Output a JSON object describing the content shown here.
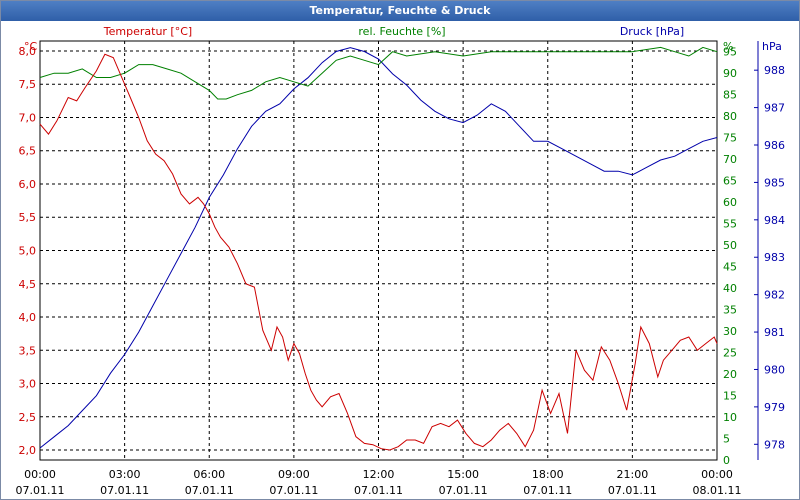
{
  "window": {
    "title": "Temperatur, Feuchte & Druck"
  },
  "chart_data": {
    "type": "line",
    "title": "Temperatur, Feuchte & Druck",
    "grid": true,
    "x_ticks": [
      {
        "time": "00:00",
        "date": "07.01.11"
      },
      {
        "time": "03:00",
        "date": "07.01.11"
      },
      {
        "time": "06:00",
        "date": "07.01.11"
      },
      {
        "time": "09:00",
        "date": "07.01.11"
      },
      {
        "time": "12:00",
        "date": "07.01.11"
      },
      {
        "time": "15:00",
        "date": "07.01.11"
      },
      {
        "time": "18:00",
        "date": "07.01.11"
      },
      {
        "time": "21:00",
        "date": "07.01.11"
      },
      {
        "time": "00:00",
        "date": "08.01.11"
      }
    ],
    "x_range_hours": [
      0,
      24
    ],
    "axes": {
      "temperature": {
        "label": "Temperatur [°C]",
        "unit": "°C",
        "color": "#cc0000",
        "min": 1.85,
        "max": 8.15,
        "ticks": [
          "8,0",
          "7,5",
          "7,0",
          "6,5",
          "6,0",
          "5,5",
          "5,0",
          "4,5",
          "4,0",
          "3,5",
          "3,0",
          "2,5",
          "2,0"
        ],
        "tick_values": [
          8.0,
          7.5,
          7.0,
          6.5,
          6.0,
          5.5,
          5.0,
          4.5,
          4.0,
          3.5,
          3.0,
          2.5,
          2.0
        ]
      },
      "humidity": {
        "label": "rel. Feuchte [%]",
        "unit": "%",
        "color": "#008000",
        "min": 0,
        "max": 97.5,
        "ticks": [
          "95",
          "90",
          "85",
          "80",
          "75",
          "70",
          "65",
          "60",
          "55",
          "50",
          "45",
          "40",
          "35",
          "30",
          "25",
          "20",
          "15",
          "10",
          "5",
          "0"
        ],
        "tick_values": [
          95,
          90,
          85,
          80,
          75,
          70,
          65,
          60,
          55,
          50,
          45,
          40,
          35,
          30,
          25,
          20,
          15,
          10,
          5,
          0
        ]
      },
      "pressure": {
        "label": "Druck [hPa]",
        "unit": "hPa",
        "color": "#0000aa",
        "min": 977.58,
        "max": 988.78,
        "ticks": [
          "988",
          "987",
          "986",
          "985",
          "984",
          "983",
          "982",
          "981",
          "980",
          "979",
          "978"
        ],
        "tick_values": [
          988,
          987,
          986,
          985,
          984,
          983,
          982,
          981,
          980,
          979,
          978
        ]
      }
    },
    "series": [
      {
        "name": "Temperatur [°C]",
        "axis": "temperature",
        "color": "#cc0000",
        "x": [
          0,
          0.3,
          0.6,
          1.0,
          1.3,
          1.6,
          2.0,
          2.3,
          2.6,
          2.9,
          3.2,
          3.5,
          3.8,
          4.1,
          4.4,
          4.7,
          5.0,
          5.3,
          5.6,
          5.8,
          6.0,
          6.2,
          6.4,
          6.7,
          7.0,
          7.3,
          7.6,
          7.9,
          8.2,
          8.4,
          8.6,
          8.8,
          9.0,
          9.2,
          9.4,
          9.6,
          9.8,
          10.0,
          10.3,
          10.6,
          10.9,
          11.2,
          11.5,
          11.8,
          12.1,
          12.4,
          12.7,
          13.0,
          13.3,
          13.6,
          13.9,
          14.2,
          14.5,
          14.8,
          15.1,
          15.4,
          15.7,
          16.0,
          16.3,
          16.6,
          16.9,
          17.2,
          17.5,
          17.8,
          18.1,
          18.4,
          18.7,
          19.0,
          19.3,
          19.6,
          19.9,
          20.2,
          20.5,
          20.8,
          21.1,
          21.3,
          21.6,
          21.9,
          22.1,
          22.4,
          22.7,
          23.0,
          23.3,
          23.6,
          23.9,
          24.0
        ],
        "values": [
          6.9,
          6.75,
          6.95,
          7.3,
          7.25,
          7.45,
          7.7,
          7.95,
          7.9,
          7.6,
          7.3,
          7.0,
          6.65,
          6.45,
          6.35,
          6.15,
          5.85,
          5.7,
          5.8,
          5.7,
          5.55,
          5.35,
          5.2,
          5.05,
          4.8,
          4.5,
          4.45,
          3.8,
          3.5,
          3.85,
          3.7,
          3.35,
          3.6,
          3.45,
          3.15,
          2.9,
          2.75,
          2.65,
          2.8,
          2.85,
          2.55,
          2.2,
          2.1,
          2.08,
          2.02,
          2.0,
          2.05,
          2.15,
          2.15,
          2.1,
          2.35,
          2.4,
          2.35,
          2.45,
          2.25,
          2.1,
          2.05,
          2.15,
          2.3,
          2.4,
          2.25,
          2.05,
          2.3,
          2.9,
          2.55,
          2.85,
          2.25,
          3.5,
          3.2,
          3.05,
          3.55,
          3.35,
          3.0,
          2.6,
          3.3,
          3.85,
          3.6,
          3.1,
          3.35,
          3.5,
          3.65,
          3.7,
          3.5,
          3.6,
          3.7,
          3.6
        ]
      },
      {
        "name": "rel. Feuchte [%]",
        "axis": "humidity",
        "color": "#008000",
        "x": [
          0,
          0.5,
          1.0,
          1.5,
          2.0,
          2.5,
          3.0,
          3.5,
          4.0,
          4.5,
          5.0,
          5.5,
          6.0,
          6.3,
          6.6,
          7.0,
          7.5,
          8.0,
          8.5,
          9.0,
          9.5,
          10.0,
          10.5,
          11.0,
          11.5,
          12.0,
          12.5,
          13.0,
          14.0,
          15.0,
          16.0,
          17.0,
          18.0,
          19.0,
          20.0,
          21.0,
          22.0,
          22.5,
          23.0,
          23.5,
          24.0
        ],
        "values": [
          89,
          90,
          90,
          91,
          89,
          89,
          90,
          92,
          92,
          91,
          90,
          88,
          86,
          84,
          84,
          85,
          86,
          88,
          89,
          88,
          87,
          90,
          93,
          94,
          93,
          92,
          95,
          94,
          95,
          94,
          95,
          95,
          95,
          95,
          95,
          95,
          96,
          95,
          94,
          96,
          95
        ]
      },
      {
        "name": "Druck [hPa]",
        "axis": "pressure",
        "color": "#0000aa",
        "x": [
          0,
          0.5,
          1.0,
          1.5,
          2.0,
          2.5,
          3.0,
          3.5,
          4.0,
          4.5,
          5.0,
          5.5,
          6.0,
          6.5,
          7.0,
          7.5,
          8.0,
          8.5,
          9.0,
          9.5,
          10.0,
          10.5,
          11.0,
          11.5,
          12.0,
          12.5,
          13.0,
          13.5,
          14.0,
          14.5,
          15.0,
          15.5,
          16.0,
          16.5,
          17.0,
          17.5,
          18.0,
          18.5,
          19.0,
          19.5,
          20.0,
          20.5,
          21.0,
          21.5,
          22.0,
          22.5,
          23.0,
          23.5,
          24.0
        ],
        "values": [
          977.9,
          978.2,
          978.5,
          978.9,
          979.3,
          979.9,
          980.4,
          981.0,
          981.7,
          982.4,
          983.1,
          983.8,
          984.6,
          985.2,
          985.9,
          986.5,
          986.9,
          987.1,
          987.5,
          987.8,
          988.2,
          988.5,
          988.6,
          988.5,
          988.3,
          987.9,
          987.6,
          987.2,
          986.9,
          986.7,
          986.6,
          986.8,
          987.1,
          986.9,
          986.5,
          986.1,
          986.1,
          985.9,
          985.7,
          985.5,
          985.3,
          985.3,
          985.2,
          985.4,
          985.6,
          985.7,
          985.9,
          986.1,
          986.2
        ]
      }
    ]
  }
}
